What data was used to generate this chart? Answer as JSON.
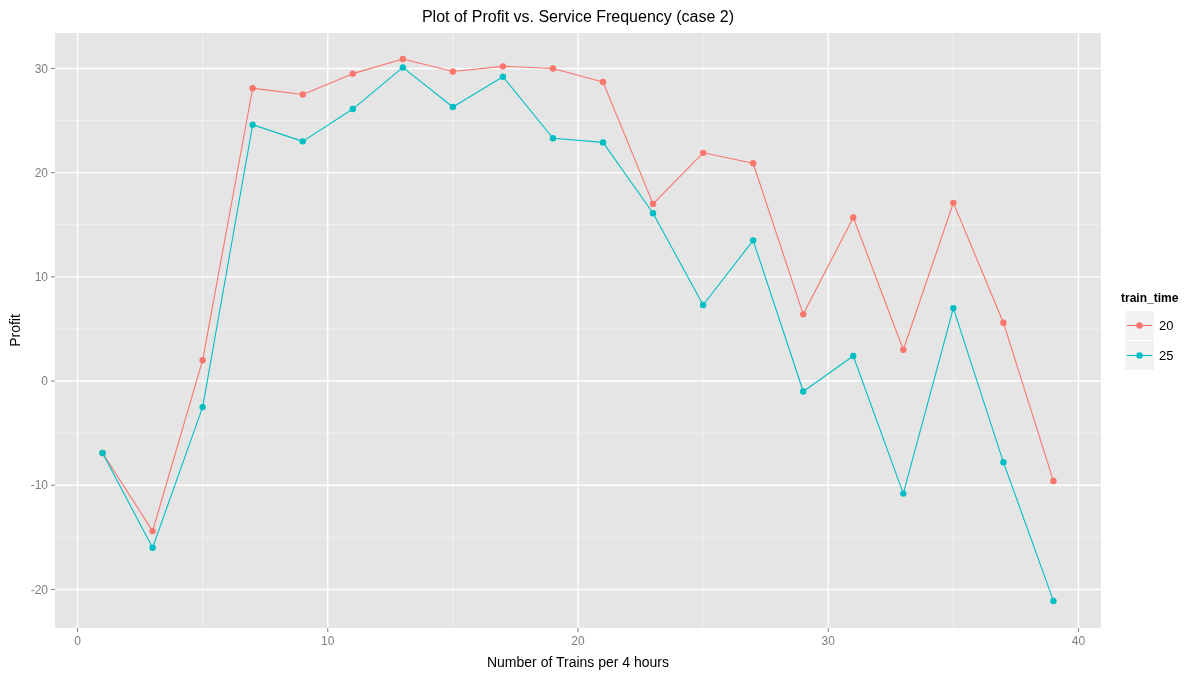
{
  "chart_data": {
    "type": "line",
    "title": "Plot of Profit vs. Service Frequency (case 2)",
    "xlabel": "Number of Trains per 4 hours",
    "ylabel": "Profit",
    "legend_title": "train_time",
    "x": [
      1,
      3,
      5,
      7,
      9,
      11,
      13,
      15,
      17,
      19,
      21,
      23,
      25,
      27,
      29,
      31,
      33,
      35,
      37,
      39
    ],
    "series": [
      {
        "name": "20",
        "color": "#f8766d",
        "values": [
          -6.9,
          -14.4,
          2.0,
          28.1,
          27.5,
          29.5,
          30.9,
          29.7,
          30.2,
          30.0,
          28.7,
          17.0,
          21.9,
          20.9,
          6.4,
          15.7,
          3.0,
          17.1,
          5.6,
          -9.6
        ]
      },
      {
        "name": "25",
        "color": "#00bfc4",
        "values": [
          -6.9,
          -16.0,
          -2.5,
          24.6,
          23.0,
          26.1,
          30.1,
          26.3,
          29.2,
          23.3,
          22.9,
          16.1,
          7.3,
          13.5,
          -1.0,
          2.4,
          -10.8,
          7.0,
          -7.8,
          -21.1
        ]
      }
    ],
    "xlim": [
      -0.9,
      40.9
    ],
    "ylim": [
      -23.7,
      33.4
    ],
    "xticks": [
      0,
      10,
      20,
      30,
      40
    ],
    "yticks": [
      -20,
      -10,
      0,
      10,
      20,
      30
    ],
    "grid": true,
    "legend": "right",
    "marker": "circle",
    "line_style": "solid"
  }
}
